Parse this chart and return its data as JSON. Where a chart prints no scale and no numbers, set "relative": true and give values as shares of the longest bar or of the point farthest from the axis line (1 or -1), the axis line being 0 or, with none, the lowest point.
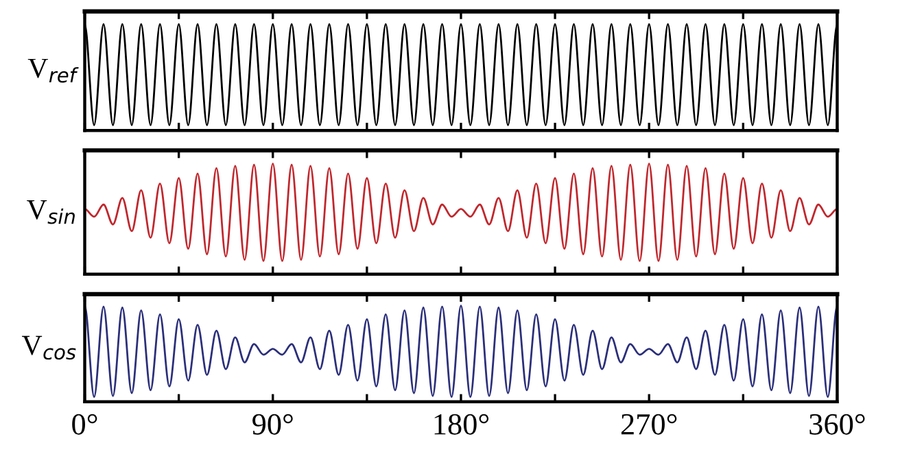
{
  "chart_data": [
    {
      "type": "line",
      "relative": true,
      "ylabel": "V$_{ref}$",
      "tick_labels": false,
      "xlim": [
        0,
        360
      ],
      "xticks": [
        {
          "value": 0,
          "label": null
        },
        {
          "value": 45,
          "label": null
        },
        {
          "value": 90,
          "label": null
        },
        {
          "value": 135,
          "label": null
        },
        {
          "value": 180,
          "label": null
        },
        {
          "value": 225,
          "label": null
        },
        {
          "value": 270,
          "label": null
        },
        {
          "value": 315,
          "label": null
        },
        {
          "value": 360,
          "label": null
        }
      ],
      "x": [
        0,
        4.5,
        9,
        13.5,
        18,
        22.5,
        27,
        31.5,
        36,
        40.5,
        45,
        49.5,
        54,
        58.5,
        63,
        67.5,
        72,
        76.5,
        81,
        85.5,
        90,
        94.5,
        99,
        103.5,
        108,
        112.5,
        117,
        121.5,
        126,
        130.5,
        135,
        139.5,
        144,
        148.5,
        153,
        157.5,
        162,
        166.5,
        171,
        175.5,
        180,
        184.5,
        189,
        193.5,
        198,
        202.5,
        207,
        211.5,
        216,
        220.5,
        225,
        229.5,
        234,
        238.5,
        243,
        247.5,
        252,
        256.5,
        261,
        265.5,
        270,
        274.5,
        279,
        283.5,
        288,
        292.5,
        297,
        301.5,
        306,
        310.5,
        315,
        319.5,
        324,
        328.5,
        333,
        337.5,
        342,
        346.5,
        351,
        355.5,
        360
      ],
      "series": [
        {
          "color": "#000000",
          "values": [
            1,
            0.05,
            1,
            0.05,
            1,
            0.05,
            1,
            0.05,
            1,
            0.05,
            1,
            0.05,
            1,
            0.05,
            1,
            0.05,
            1,
            0.05,
            1,
            0.05,
            1,
            0.05,
            1,
            0.05,
            1,
            0.05,
            1,
            0.05,
            1,
            0.05,
            1,
            0.05,
            1,
            0.05,
            1,
            0.05,
            1,
            0.05,
            1,
            0.05,
            1,
            0.05,
            1,
            0.05,
            1,
            0.05,
            1,
            0.05,
            1,
            0.05,
            1,
            0.05,
            1,
            0.05,
            1,
            0.05,
            1,
            0.05,
            1,
            0.05,
            1,
            0.05,
            1,
            0.05,
            1,
            0.05,
            1,
            0.05,
            1,
            0.05,
            1,
            0.05,
            1,
            0.05,
            1,
            0.05,
            1,
            0.05,
            1,
            0.05,
            1
          ]
        }
      ]
    },
    {
      "type": "line",
      "relative": true,
      "ylabel": "V$_{sin}$",
      "tick_labels": false,
      "xlim": [
        0,
        360
      ],
      "xticks": [
        {
          "value": 0,
          "label": null
        },
        {
          "value": 45,
          "label": null
        },
        {
          "value": 90,
          "label": null
        },
        {
          "value": 135,
          "label": null
        },
        {
          "value": 180,
          "label": null
        },
        {
          "value": 225,
          "label": null
        },
        {
          "value": 270,
          "label": null
        },
        {
          "value": 315,
          "label": null
        },
        {
          "value": 360,
          "label": null
        }
      ],
      "x": [
        0,
        4.5,
        9,
        13.5,
        18,
        22.5,
        27,
        31.5,
        36,
        40.5,
        45,
        49.5,
        54,
        58.5,
        63,
        67.5,
        72,
        76.5,
        81,
        85.5,
        90,
        94.5,
        99,
        103.5,
        108,
        112.5,
        117,
        121.5,
        126,
        130.5,
        135,
        139.5,
        144,
        148.5,
        153,
        157.5,
        162,
        166.5,
        171,
        175.5,
        180,
        184.5,
        189,
        193.5,
        198,
        202.5,
        207,
        211.5,
        216,
        220.5,
        225,
        229.5,
        234,
        238.5,
        243,
        247.5,
        252,
        256.5,
        261,
        265.5,
        270,
        274.5,
        279,
        283.5,
        288,
        292.5,
        297,
        301.5,
        306,
        310.5,
        315,
        319.5,
        324,
        328.5,
        333,
        337.5,
        342,
        346.5,
        351,
        355.5,
        360
      ],
      "series": [
        {
          "color": "#c0272d",
          "values": [
            0.59,
            0.52,
            0.63,
            0.45,
            0.69,
            0.39,
            0.76,
            0.33,
            0.82,
            0.28,
            0.87,
            0.23,
            0.91,
            0.18,
            0.96,
            0.16,
            0.98,
            0.13,
            0.99,
            0.12,
            1,
            0.12,
            0.99,
            0.13,
            0.98,
            0.16,
            0.96,
            0.18,
            0.91,
            0.23,
            0.87,
            0.28,
            0.82,
            0.33,
            0.76,
            0.39,
            0.69,
            0.45,
            0.63,
            0.52,
            0.59,
            0.52,
            0.63,
            0.45,
            0.69,
            0.39,
            0.76,
            0.33,
            0.82,
            0.28,
            0.87,
            0.23,
            0.91,
            0.18,
            0.96,
            0.16,
            0.98,
            0.13,
            0.99,
            0.12,
            1,
            0.12,
            0.99,
            0.13,
            0.98,
            0.16,
            0.96,
            0.18,
            0.91,
            0.23,
            0.87,
            0.28,
            0.82,
            0.33,
            0.76,
            0.39,
            0.69,
            0.45,
            0.63,
            0.52,
            0.59
          ]
        }
      ]
    },
    {
      "type": "line",
      "relative": true,
      "ylabel": "V$_{cos}$",
      "tick_labels": "x",
      "xlim": [
        0,
        360
      ],
      "xticks": [
        {
          "value": 0,
          "label": "0°"
        },
        {
          "value": 45,
          "label": null
        },
        {
          "value": 90,
          "label": "90°"
        },
        {
          "value": 135,
          "label": null
        },
        {
          "value": 180,
          "label": "180°"
        },
        {
          "value": 225,
          "label": null
        },
        {
          "value": 270,
          "label": "270°"
        },
        {
          "value": 315,
          "label": null
        },
        {
          "value": 360,
          "label": "360°"
        }
      ],
      "x": [
        0,
        4.5,
        9,
        13.5,
        18,
        22.5,
        27,
        31.5,
        36,
        40.5,
        45,
        49.5,
        54,
        58.5,
        63,
        67.5,
        72,
        76.5,
        81,
        85.5,
        90,
        94.5,
        99,
        103.5,
        108,
        112.5,
        117,
        121.5,
        126,
        130.5,
        135,
        139.5,
        144,
        148.5,
        153,
        157.5,
        162,
        166.5,
        171,
        175.5,
        180,
        184.5,
        189,
        193.5,
        198,
        202.5,
        207,
        211.5,
        216,
        220.5,
        225,
        229.5,
        234,
        238.5,
        243,
        247.5,
        252,
        256.5,
        261,
        265.5,
        270,
        274.5,
        279,
        283.5,
        288,
        292.5,
        297,
        301.5,
        306,
        310.5,
        315,
        319.5,
        324,
        328.5,
        333,
        337.5,
        342,
        346.5,
        351,
        355.5,
        360
      ],
      "series": [
        {
          "color": "#2b2f7a",
          "values": [
            1,
            0.05,
            0.99,
            0.06,
            0.98,
            0.09,
            0.95,
            0.12,
            0.91,
            0.16,
            0.86,
            0.22,
            0.8,
            0.28,
            0.74,
            0.34,
            0.67,
            0.41,
            0.6,
            0.49,
            0.55,
            0.49,
            0.6,
            0.41,
            0.67,
            0.34,
            0.74,
            0.28,
            0.8,
            0.22,
            0.86,
            0.16,
            0.91,
            0.12,
            0.95,
            0.09,
            0.98,
            0.06,
            0.99,
            0.05,
            1,
            0.05,
            0.99,
            0.06,
            0.98,
            0.09,
            0.95,
            0.12,
            0.91,
            0.16,
            0.86,
            0.22,
            0.8,
            0.28,
            0.74,
            0.34,
            0.67,
            0.41,
            0.6,
            0.49,
            0.55,
            0.49,
            0.6,
            0.41,
            0.67,
            0.34,
            0.74,
            0.28,
            0.8,
            0.22,
            0.86,
            0.16,
            0.91,
            0.12,
            0.95,
            0.09,
            0.98,
            0.06,
            0.99,
            0.05,
            1
          ]
        }
      ]
    }
  ]
}
